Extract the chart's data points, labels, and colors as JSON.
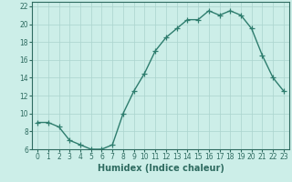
{
  "x": [
    0,
    1,
    2,
    3,
    4,
    5,
    6,
    7,
    8,
    9,
    10,
    11,
    12,
    13,
    14,
    15,
    16,
    17,
    18,
    19,
    20,
    21,
    22,
    23
  ],
  "y": [
    9.0,
    9.0,
    8.5,
    7.0,
    6.5,
    6.0,
    6.0,
    6.5,
    10.0,
    12.5,
    14.5,
    17.0,
    18.5,
    19.5,
    20.5,
    20.5,
    21.5,
    21.0,
    21.5,
    21.0,
    19.5,
    16.5,
    14.0,
    12.5
  ],
  "line_color": "#2e7d6e",
  "marker": "+",
  "marker_size": 4,
  "line_width": 1.0,
  "bg_color": "#cceee8",
  "grid_color": "#aad4ce",
  "xlabel": "Humidex (Indice chaleur)",
  "xlim": [
    -0.5,
    23.5
  ],
  "ylim": [
    6,
    22.5
  ],
  "yticks": [
    6,
    8,
    10,
    12,
    14,
    16,
    18,
    20,
    22
  ],
  "xtick_labels": [
    "0",
    "1",
    "2",
    "3",
    "4",
    "5",
    "6",
    "7",
    "8",
    "9",
    "10",
    "11",
    "12",
    "13",
    "14",
    "15",
    "16",
    "17",
    "18",
    "19",
    "20",
    "21",
    "22",
    "23"
  ],
  "xlabel_fontsize": 7,
  "tick_fontsize": 5.5
}
